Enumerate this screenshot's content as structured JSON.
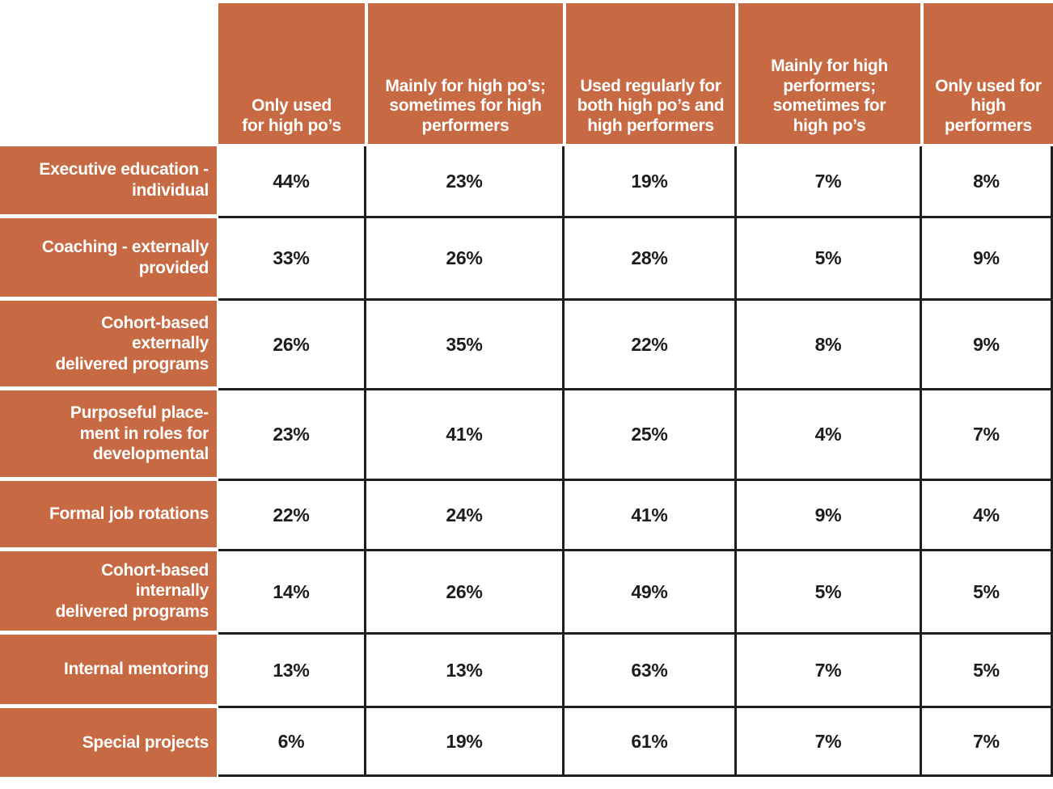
{
  "colors": {
    "accent_orange": "#C76A43",
    "grid_line": "#1F1F1F",
    "header_text": "#FFFFFF",
    "cell_text": "#1D1D1D"
  },
  "table": {
    "column_headers": [
      "Only used\nfor high po’s",
      "Mainly for high po’s;\nsometimes for high\nperformers",
      "Used regularly for\nboth high po’s and\nhigh performers",
      "Mainly for high\nperformers;\nsometimes for\nhigh po’s",
      "Only used for\nhigh\nperformers"
    ],
    "rows": [
      {
        "label": "Executive education -\nindividual",
        "values": [
          "44%",
          "23%",
          "19%",
          "7%",
          "8%"
        ]
      },
      {
        "label": "Coaching - externally\nprovided",
        "values": [
          "33%",
          "26%",
          "28%",
          "5%",
          "9%"
        ]
      },
      {
        "label": "Cohort-based\nexternally\ndelivered programs",
        "values": [
          "26%",
          "35%",
          "22%",
          "8%",
          "9%"
        ]
      },
      {
        "label": "Purposeful place-\nment in roles for\ndevelopmental",
        "values": [
          "23%",
          "41%",
          "25%",
          "4%",
          "7%"
        ]
      },
      {
        "label": "Formal job rotations",
        "values": [
          "22%",
          "24%",
          "41%",
          "9%",
          "4%"
        ]
      },
      {
        "label": "Cohort-based\ninternally\ndelivered programs",
        "values": [
          "14%",
          "26%",
          "49%",
          "5%",
          "5%"
        ]
      },
      {
        "label": "Internal mentoring",
        "values": [
          "13%",
          "13%",
          "63%",
          "7%",
          "5%"
        ]
      },
      {
        "label": "Special projects",
        "values": [
          "6%",
          "19%",
          "61%",
          "7%",
          "7%"
        ]
      }
    ]
  },
  "chart_data": {
    "type": "table",
    "title": "",
    "columns": [
      "Only used for high po’s",
      "Mainly for high po’s; sometimes for high performers",
      "Used regularly for both high po’s and high performers",
      "Mainly for high performers; sometimes for high po’s",
      "Only used for high performers"
    ],
    "rows": [
      {
        "label": "Executive education - individual",
        "values_percent": [
          44,
          23,
          19,
          7,
          8
        ]
      },
      {
        "label": "Coaching - externally provided",
        "values_percent": [
          33,
          26,
          28,
          5,
          9
        ]
      },
      {
        "label": "Cohort-based externally delivered programs",
        "values_percent": [
          26,
          35,
          22,
          8,
          9
        ]
      },
      {
        "label": "Purposeful placement in roles for developmental",
        "values_percent": [
          23,
          41,
          25,
          4,
          7
        ]
      },
      {
        "label": "Formal job rotations",
        "values_percent": [
          22,
          24,
          41,
          9,
          4
        ]
      },
      {
        "label": "Cohort-based internally delivered programs",
        "values_percent": [
          14,
          26,
          49,
          5,
          5
        ]
      },
      {
        "label": "Internal mentoring",
        "values_percent": [
          13,
          13,
          63,
          7,
          5
        ]
      },
      {
        "label": "Special projects",
        "values_percent": [
          6,
          19,
          61,
          7,
          7
        ]
      }
    ]
  }
}
